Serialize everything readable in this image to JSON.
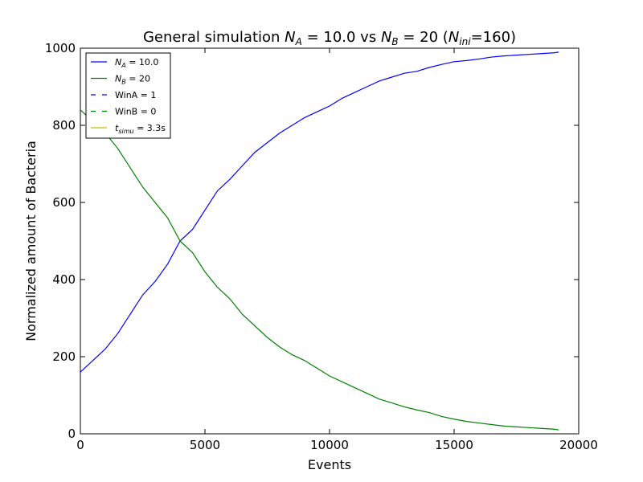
{
  "chart_data": {
    "type": "line",
    "title": {
      "prefix": "General simulation ",
      "na_label": "N",
      "na_sub": "A",
      "na_value": " = 10.0 vs ",
      "nb_label": "N",
      "nb_sub": "B",
      "nb_value": " = 20 (",
      "nini_label": "N",
      "nini_sub": "ini",
      "nini_value": "=160)"
    },
    "xlabel": "Events",
    "ylabel": "Normalized amount of Bacteria",
    "xlim": [
      0,
      20000
    ],
    "ylim": [
      0,
      1000
    ],
    "xticks": [
      "0",
      "5000",
      "10000",
      "15000",
      "20000"
    ],
    "yticks": [
      "0",
      "200",
      "400",
      "600",
      "800",
      "1000"
    ],
    "grid": false,
    "legend": {
      "placement": "top-left",
      "entries": [
        {
          "label_main": "N",
          "label_sub": "A",
          "label_rest": " = 10.0",
          "color": "#0000ff",
          "style": "solid"
        },
        {
          "label_main": "N",
          "label_sub": "B",
          "label_rest": " = 20",
          "color": "#008000",
          "style": "solid"
        },
        {
          "label_main": "WinA = 1",
          "label_sub": "",
          "label_rest": "",
          "color": "#0000ff",
          "style": "dashed"
        },
        {
          "label_main": "WinB = 0",
          "label_sub": "",
          "label_rest": "",
          "color": "#008000",
          "style": "dashed"
        },
        {
          "label_main": "t",
          "label_sub": "simu",
          "label_rest": " = 3.3s",
          "color": "#bfbf00",
          "style": "solid"
        }
      ]
    },
    "series": [
      {
        "name": "N_A = 10.0",
        "color": "#0000ff",
        "x": [
          0,
          500,
          1000,
          1500,
          2000,
          2500,
          3000,
          3500,
          4000,
          4500,
          5000,
          5500,
          6000,
          6500,
          7000,
          7500,
          8000,
          8500,
          9000,
          9500,
          10000,
          10500,
          11000,
          11500,
          12000,
          12500,
          13000,
          13500,
          14000,
          14500,
          15000,
          15500,
          16000,
          16500,
          17000,
          17500,
          18000,
          18500,
          19000,
          19200
        ],
        "y": [
          160,
          190,
          220,
          260,
          310,
          360,
          395,
          440,
          500,
          530,
          580,
          630,
          660,
          695,
          730,
          755,
          780,
          800,
          820,
          835,
          850,
          870,
          885,
          900,
          915,
          925,
          935,
          940,
          950,
          958,
          965,
          968,
          972,
          977,
          980,
          982,
          984,
          986,
          988,
          990
        ]
      },
      {
        "name": "N_B = 20",
        "color": "#008000",
        "x": [
          0,
          500,
          1000,
          1500,
          2000,
          2500,
          3000,
          3500,
          4000,
          4500,
          5000,
          5500,
          6000,
          6500,
          7000,
          7500,
          8000,
          8500,
          9000,
          9500,
          10000,
          10500,
          11000,
          11500,
          12000,
          12500,
          13000,
          13500,
          14000,
          14500,
          15000,
          15500,
          16000,
          16500,
          17000,
          17500,
          18000,
          18500,
          19000,
          19200
        ],
        "y": [
          840,
          810,
          780,
          740,
          690,
          640,
          600,
          560,
          500,
          470,
          420,
          380,
          350,
          310,
          280,
          250,
          225,
          205,
          190,
          170,
          150,
          135,
          120,
          105,
          90,
          80,
          70,
          62,
          55,
          45,
          38,
          32,
          28,
          24,
          20,
          18,
          16,
          14,
          12,
          10
        ]
      }
    ]
  }
}
